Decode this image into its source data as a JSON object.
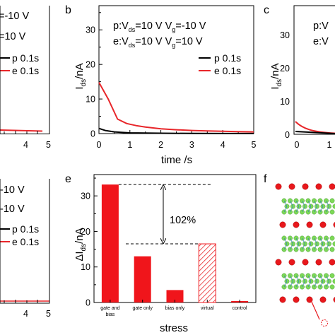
{
  "panels": {
    "a_partial": {
      "cond_p": "=-10 V",
      "cond_e": "=10 V",
      "legend": [
        "p 0.1s",
        "e 0.1s"
      ],
      "xticks": [
        "4",
        "5"
      ]
    },
    "d_partial": {
      "cond_p": "-10 V",
      "cond_e": "-10 V",
      "legend": [
        "p 0.1s",
        "e 0.1s"
      ],
      "xticks": [
        "4",
        "5"
      ]
    },
    "b": {
      "letter": "b",
      "cond_p_pre": "p:V",
      "cond_p_sub1": "ds",
      "cond_p_mid": "=10 V V",
      "cond_p_sub2": "g",
      "cond_p_post": "=-10 V",
      "cond_e_pre": "e:V",
      "cond_e_sub1": "ds",
      "cond_e_mid": "=10 V V",
      "cond_e_sub2": "g",
      "cond_e_post": "=10 V",
      "ylabel_main": "I",
      "ylabel_sub": "ds",
      "ylabel_unit": "/nA",
      "xlabel": "time /s"
    },
    "c": {
      "letter": "c",
      "cond_p": "p:V",
      "cond_e": "e:V",
      "ylabel_main": "I",
      "ylabel_sub": "ds",
      "ylabel_unit": "/nA",
      "yticks": [
        "0",
        "10",
        "20",
        "30"
      ],
      "xticks": [
        "0",
        "1"
      ]
    },
    "e": {
      "letter": "e",
      "ylabel_pre": "ΔI",
      "ylabel_sub": "ds",
      "ylabel_unit": "/nA",
      "xlabel": "stress",
      "annotation": "102%"
    },
    "f": {
      "letter": "f"
    }
  },
  "colors": {
    "p": "#000000",
    "e": "#e8262a",
    "bar": "#f0151b",
    "atom_red": "#e8181c",
    "atom_green": "#7ed957"
  },
  "chart_data": [
    {
      "type": "line",
      "panel": "b",
      "xlabel": "time /s",
      "ylabel": "Ids/nA",
      "xlim": [
        0,
        5
      ],
      "ylim": [
        0,
        37
      ],
      "xticks": [
        0,
        1,
        2,
        3,
        4,
        5
      ],
      "yticks": [
        0,
        10,
        20,
        30
      ],
      "legend_position": "top-right",
      "series": [
        {
          "name": "p 0.1s",
          "x": [
            0,
            0.2,
            0.5,
            0.8,
            1.0,
            1.5,
            2.0,
            3.0,
            4.0,
            5.0
          ],
          "values": [
            1.5,
            0.9,
            0.5,
            0.3,
            0.2,
            0.15,
            0.1,
            0.05,
            0.03,
            0.02
          ]
        },
        {
          "name": "e 0.1s",
          "x": [
            0,
            0.3,
            0.6,
            0.9,
            1.2,
            1.5,
            2.0,
            2.5,
            3.0,
            3.5,
            4.0,
            4.5,
            5.0
          ],
          "values": [
            14.8,
            10.0,
            4.2,
            2.9,
            2.3,
            1.9,
            1.4,
            1.1,
            0.9,
            0.75,
            0.65,
            0.55,
            0.5
          ]
        }
      ]
    },
    {
      "type": "bar",
      "panel": "e",
      "xlabel": "stress",
      "ylabel": "ΔIds/nA",
      "ylim": [
        0,
        36
      ],
      "yticks": [
        0,
        10,
        20,
        30
      ],
      "categories": [
        "gate and bias",
        "gate only",
        "bias only",
        "virtual",
        "control"
      ],
      "values": [
        33.2,
        13.0,
        3.5,
        16.5,
        0.4
      ],
      "hatched": [
        false,
        false,
        false,
        true,
        false
      ],
      "annotation": {
        "text": "102%",
        "from": 16.5,
        "to": 33.2
      }
    }
  ]
}
